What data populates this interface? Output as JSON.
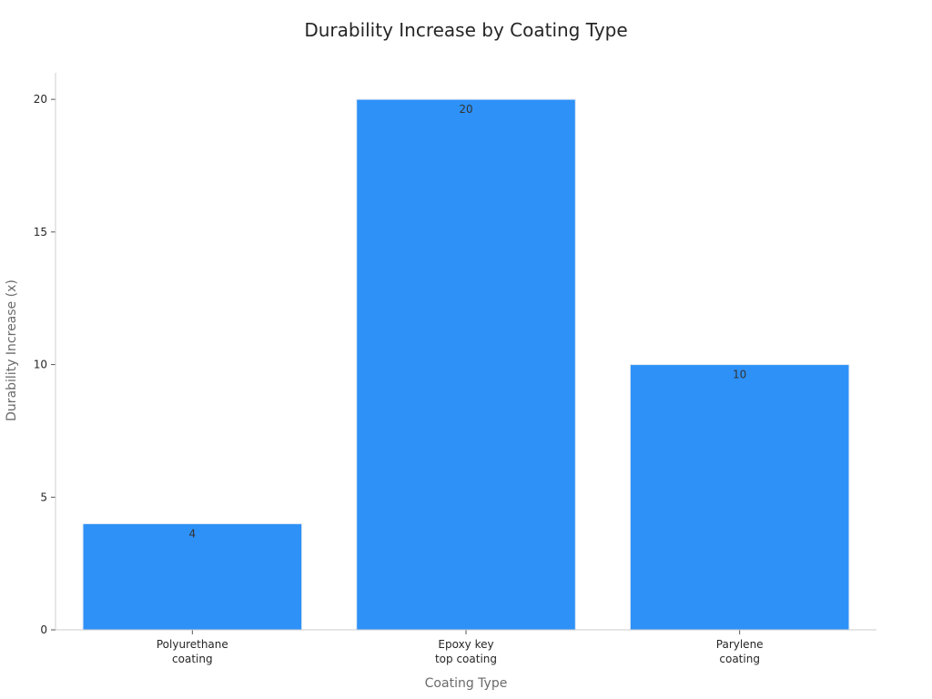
{
  "chart_data": {
    "type": "bar",
    "title": "Durability Increase by Coating Type",
    "xlabel": "Coating Type",
    "ylabel": "Durability Increase (x)",
    "categories": [
      [
        "Polyurethane",
        "coating"
      ],
      [
        "Epoxy key",
        "top coating"
      ],
      [
        "Parylene",
        "coating"
      ]
    ],
    "values": [
      4,
      20,
      10
    ],
    "data_labels": [
      "4",
      "20",
      "10"
    ],
    "ylim": [
      0,
      21
    ],
    "yticks": [
      0,
      5,
      10,
      15,
      20
    ],
    "grid": false,
    "legend": "none",
    "colors": {
      "bar": "#2e91f8",
      "bar_edge": "#dfe9f3",
      "axis": "#cccccc"
    }
  }
}
